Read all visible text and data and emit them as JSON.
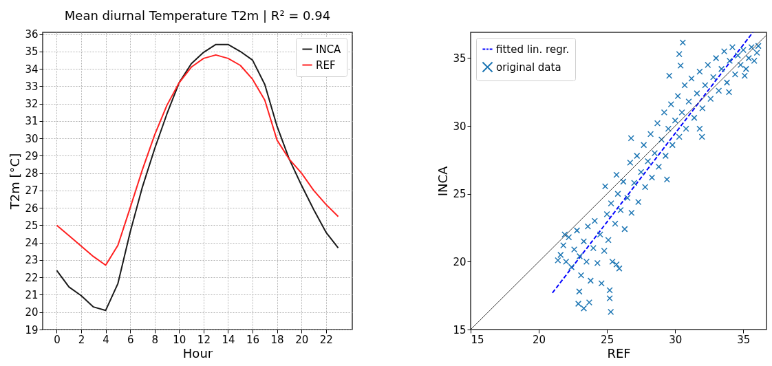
{
  "chart_data": [
    {
      "type": "line",
      "title": "Mean diurnal Temperature T2m | R² = 0.94",
      "xlabel": "Hour",
      "ylabel": "T2m [°C]",
      "x": [
        0,
        1,
        2,
        3,
        4,
        5,
        6,
        7,
        8,
        9,
        10,
        11,
        12,
        13,
        14,
        15,
        16,
        17,
        18,
        19,
        20,
        21,
        22,
        23
      ],
      "series": [
        {
          "name": "INCA",
          "color": "#1a1a1a",
          "values": [
            22.4,
            21.45,
            20.95,
            20.3,
            20.1,
            21.65,
            24.6,
            27.2,
            29.4,
            31.4,
            33.2,
            34.3,
            34.95,
            35.4,
            35.4,
            35.0,
            34.5,
            33.1,
            30.7,
            28.8,
            27.3,
            25.9,
            24.6,
            23.7
          ]
        },
        {
          "name": "REF",
          "color": "#ff2020",
          "values": [
            25.0,
            24.4,
            23.8,
            23.2,
            22.7,
            23.85,
            26.0,
            28.2,
            30.2,
            31.9,
            33.2,
            34.1,
            34.6,
            34.8,
            34.6,
            34.2,
            33.4,
            32.2,
            29.9,
            28.8,
            28.0,
            27.0,
            26.2,
            25.5
          ]
        }
      ],
      "xlim": [
        -1.15,
        24.15
      ],
      "xticks": [
        0,
        2,
        4,
        6,
        8,
        10,
        12,
        14,
        16,
        18,
        20,
        22
      ],
      "ylim": [
        19,
        36.1
      ],
      "yticks": [
        19,
        20,
        21,
        22,
        23,
        24,
        25,
        26,
        27,
        28,
        29,
        30,
        31,
        32,
        33,
        34,
        35,
        36
      ],
      "grid": true,
      "legend": "top right",
      "line_style": "solid"
    },
    {
      "type": "scatter",
      "xlabel": "REF",
      "ylabel": "INCA",
      "series": [
        {
          "name": "fitted lin. regr.",
          "type": "line",
          "color": "#0000ff",
          "line_style": "dashed",
          "x": [
            21.0,
            35.7
          ],
          "values": [
            17.7,
            36.9
          ]
        },
        {
          "name": "original data",
          "type": "scatter",
          "color": "#1f77b4",
          "marker": "cross",
          "x": [
            21.6,
            21.8,
            22.0,
            22.2,
            22.4,
            22.6,
            22.8,
            23.0,
            23.1,
            23.3,
            23.5,
            23.6,
            23.8,
            24.0,
            24.1,
            24.3,
            24.5,
            24.6,
            24.8,
            25.0,
            25.1,
            25.3,
            25.4,
            25.6,
            25.8,
            25.9,
            26.0,
            26.2,
            26.3,
            26.5,
            26.7,
            26.8,
            27.0,
            27.2,
            27.3,
            27.5,
            27.7,
            27.8,
            28.0,
            28.2,
            28.3,
            28.5,
            28.7,
            28.8,
            29.0,
            29.2,
            29.3,
            29.5,
            29.7,
            29.8,
            30.0,
            30.2,
            30.3,
            30.5,
            30.7,
            30.8,
            31.0,
            31.2,
            31.4,
            31.6,
            31.8,
            32.0,
            32.2,
            32.4,
            32.6,
            32.8,
            33.0,
            33.2,
            33.4,
            33.6,
            33.8,
            34.0,
            34.2,
            34.4,
            34.6,
            34.8,
            35.0,
            35.2,
            35.4,
            35.6,
            35.8,
            36.0,
            30.56,
            30.3,
            30.4,
            29.57,
            25.28,
            25.2,
            25.2,
            23.3,
            22.9,
            22.97,
            23.7,
            26.77,
            31.97,
            31.8,
            29.4,
            25.7,
            24.87,
            21.9,
            21.4,
            25.7,
            35.1,
            33.95,
            36.1
          ],
          "values": [
            20.5,
            21.2,
            20.0,
            21.8,
            19.6,
            20.9,
            22.3,
            20.4,
            19.0,
            21.5,
            20.0,
            22.6,
            18.6,
            21.0,
            23.0,
            19.9,
            22.0,
            18.4,
            20.8,
            23.5,
            21.6,
            24.3,
            20.0,
            22.8,
            25.0,
            19.5,
            23.8,
            25.9,
            22.4,
            24.7,
            27.3,
            23.6,
            25.8,
            27.8,
            24.4,
            26.6,
            28.6,
            25.5,
            27.4,
            29.4,
            26.2,
            28.0,
            30.2,
            27.0,
            29.0,
            31.0,
            27.8,
            29.8,
            31.6,
            28.6,
            30.4,
            32.2,
            29.2,
            31.0,
            33.0,
            29.8,
            31.8,
            33.5,
            30.6,
            32.4,
            34.0,
            31.3,
            33.0,
            34.5,
            32.0,
            33.6,
            35.0,
            32.6,
            34.2,
            35.5,
            33.2,
            34.8,
            35.8,
            33.8,
            35.2,
            34.5,
            35.6,
            34.2,
            35.0,
            35.8,
            34.8,
            35.4,
            36.15,
            35.3,
            34.45,
            33.7,
            16.3,
            17.3,
            17.9,
            16.56,
            16.9,
            17.8,
            17.0,
            29.1,
            29.2,
            29.8,
            26.06,
            26.4,
            25.55,
            22.0,
            20.1,
            19.8,
            33.7,
            32.5,
            35.9
          ]
        },
        {
          "type": "line",
          "color": "#404040",
          "line_style": "solid",
          "x": [
            15,
            36.7
          ],
          "values": [
            15,
            36.7
          ]
        }
      ],
      "xlim": [
        15,
        36.7
      ],
      "xticks": [
        15,
        20,
        25,
        30,
        35
      ],
      "ylim": [
        15,
        36.9
      ],
      "yticks": [
        15,
        20,
        25,
        30,
        35
      ],
      "legend": "top left"
    }
  ]
}
